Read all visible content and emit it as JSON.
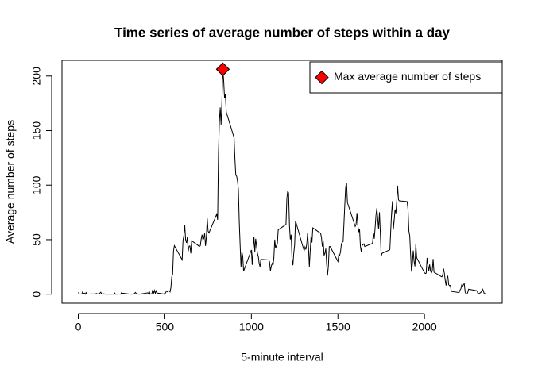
{
  "chart_data": {
    "type": "line",
    "title": "Time series of average number of steps within a day",
    "xlabel": "5-minute interval",
    "ylabel": "Average number of steps",
    "xlim": [
      -94.2,
      2449.2
    ],
    "ylim": [
      -8.25,
      214.4
    ],
    "xticks": [
      0,
      500,
      1000,
      1500,
      2000
    ],
    "yticks": [
      0,
      50,
      100,
      150,
      200
    ],
    "legend": "topright",
    "series": [
      {
        "color": "#000000",
        "x": [
          0,
          5,
          10,
          15,
          20,
          25,
          30,
          35,
          40,
          45,
          50,
          55,
          100,
          105,
          110,
          115,
          120,
          125,
          130,
          135,
          140,
          145,
          150,
          155,
          200,
          205,
          210,
          215,
          220,
          225,
          230,
          235,
          240,
          245,
          250,
          255,
          300,
          305,
          310,
          315,
          320,
          325,
          330,
          335,
          340,
          345,
          350,
          355,
          400,
          405,
          410,
          415,
          420,
          425,
          430,
          435,
          440,
          445,
          450,
          455,
          500,
          505,
          510,
          515,
          520,
          525,
          530,
          535,
          540,
          545,
          550,
          555,
          600,
          605,
          610,
          615,
          620,
          625,
          630,
          635,
          640,
          645,
          650,
          655,
          700,
          705,
          710,
          715,
          720,
          725,
          730,
          735,
          740,
          745,
          750,
          755,
          800,
          805,
          810,
          815,
          820,
          825,
          830,
          835,
          840,
          845,
          850,
          855,
          900,
          905,
          910,
          915,
          920,
          925,
          930,
          935,
          940,
          945,
          950,
          955,
          1000,
          1005,
          1010,
          1015,
          1020,
          1025,
          1030,
          1035,
          1040,
          1045,
          1050,
          1055,
          1100,
          1105,
          1110,
          1115,
          1120,
          1125,
          1130,
          1135,
          1140,
          1145,
          1150,
          1155,
          1200,
          1205,
          1210,
          1215,
          1220,
          1225,
          1230,
          1235,
          1240,
          1245,
          1250,
          1255,
          1300,
          1305,
          1310,
          1315,
          1320,
          1325,
          1330,
          1335,
          1340,
          1345,
          1350,
          1355,
          1400,
          1405,
          1410,
          1415,
          1420,
          1425,
          1430,
          1435,
          1440,
          1445,
          1450,
          1455,
          1500,
          1505,
          1510,
          1515,
          1520,
          1525,
          1530,
          1535,
          1540,
          1545,
          1550,
          1555,
          1600,
          1605,
          1610,
          1615,
          1620,
          1625,
          1630,
          1635,
          1640,
          1645,
          1650,
          1655,
          1700,
          1705,
          1710,
          1715,
          1720,
          1725,
          1730,
          1735,
          1740,
          1745,
          1750,
          1755,
          1800,
          1805,
          1810,
          1815,
          1820,
          1825,
          1830,
          1835,
          1840,
          1845,
          1850,
          1855,
          1900,
          1905,
          1910,
          1915,
          1920,
          1925,
          1930,
          1935,
          1940,
          1945,
          1950,
          1955,
          2000,
          2005,
          2010,
          2015,
          2020,
          2025,
          2030,
          2035,
          2040,
          2045,
          2050,
          2055,
          2100,
          2105,
          2110,
          2115,
          2120,
          2125,
          2130,
          2135,
          2140,
          2145,
          2150,
          2155,
          2200,
          2205,
          2210,
          2215,
          2220,
          2225,
          2230,
          2235,
          2240,
          2245,
          2250,
          2255,
          2300,
          2305,
          2310,
          2315,
          2320,
          2325,
          2330,
          2335,
          2340,
          2345,
          2350,
          2355
        ],
        "values": [
          1.7,
          0.3,
          0.1,
          0.2,
          0.1,
          2.1,
          0.5,
          0.9,
          0,
          1.5,
          0.3,
          0.1,
          0.3,
          0.7,
          0.2,
          0.3,
          0,
          1.1,
          1.8,
          0.2,
          0.2,
          0.4,
          0.3,
          0,
          0,
          0,
          1.1,
          0,
          0,
          0.1,
          0,
          0.2,
          0,
          0,
          1.5,
          0.9,
          0,
          0,
          0,
          0,
          0.2,
          0.6,
          1.6,
          0.6,
          0.5,
          0.1,
          0,
          0,
          1.2,
          0.9,
          2.6,
          0,
          0.3,
          0.4,
          4.1,
          0.7,
          3.5,
          0.8,
          3.1,
          1.1,
          0,
          1.6,
          3,
          2.2,
          3.3,
          3,
          2.1,
          6.1,
          16,
          18.3,
          39.5,
          44.5,
          31.5,
          49.3,
          53.8,
          63.5,
          50,
          47.1,
          52.2,
          39.3,
          44,
          44.2,
          37.4,
          49,
          43.8,
          44.4,
          50.5,
          54.5,
          49.9,
          51,
          55.7,
          44.3,
          52.3,
          69.5,
          57.8,
          56.2,
          73.4,
          68.2,
          129.4,
          157.5,
          171.2,
          155.4,
          177.3,
          206.2,
          195.9,
          179.6,
          183.4,
          167,
          143.5,
          124,
          109.1,
          108.1,
          103.7,
          96,
          66.2,
          45.2,
          24.8,
          38.8,
          35,
          21.1,
          40.6,
          26.9,
          42.4,
          52.7,
          38.9,
          50.8,
          44.3,
          37.4,
          34.7,
          28.3,
          25.1,
          31.9,
          31.4,
          29.7,
          21.3,
          25.5,
          28.4,
          26.5,
          33.4,
          50,
          42,
          44.6,
          46,
          59,
          63.9,
          87.7,
          94.8,
          92.8,
          63.4,
          50.2,
          54.5,
          32.4,
          26.5,
          37.7,
          45.1,
          67.3,
          42.3,
          39.9,
          43.3,
          41,
          46.2,
          56.4,
          42.8,
          25.1,
          40,
          53.5,
          47.3,
          60.8,
          55.8,
          52,
          43.6,
          48.7,
          35.5,
          37.5,
          41.8,
          27.5,
          17.1,
          26.1,
          43.6,
          43.8,
          30,
          36.1,
          35.5,
          38.8,
          46,
          47.8,
          48.1,
          65.3,
          82.9,
          98.7,
          102.1,
          84,
          62.1,
          64.1,
          74.5,
          63.2,
          56.9,
          59.8,
          43.9,
          38.6,
          44.7,
          45.5,
          46.2,
          43.7,
          46.6,
          56.3,
          50.7,
          61.2,
          72.7,
          78.9,
          68.9,
          59.7,
          75.1,
          56.5,
          34.8,
          37.5,
          40.7,
          58,
          74.7,
          85.3,
          59.3,
          67.8,
          77.7,
          74.2,
          85.3,
          99.5,
          86.6,
          85.6,
          84.9,
          77.8,
          58,
          53.4,
          36.3,
          20.7,
          27.4,
          40,
          30.2,
          25.5,
          45.7,
          33.5,
          19.6,
          19,
          19.3,
          33.3,
          26.8,
          21.2,
          27.3,
          21.3,
          19.5,
          21.3,
          32.3,
          20.2,
          15.9,
          17.2,
          23.5,
          19.2,
          12.5,
          8,
          14.7,
          16.3,
          8.7,
          7.8,
          8.1,
          2.6,
          1.5,
          3.7,
          4.8,
          8.5,
          7.1,
          8.7,
          9.8,
          2.2,
          0.3,
          0.1,
          1.6,
          4.6,
          3.3,
          2.8,
          0,
          0.8,
          1,
          1.6,
          2.6,
          4.7,
          3.3,
          0.6,
          0.2,
          1.1
        ]
      },
      {
        "name": "Max average number of steps",
        "color": "#ff0000",
        "x": [
          835
        ],
        "values": [
          206.2
        ]
      }
    ]
  }
}
